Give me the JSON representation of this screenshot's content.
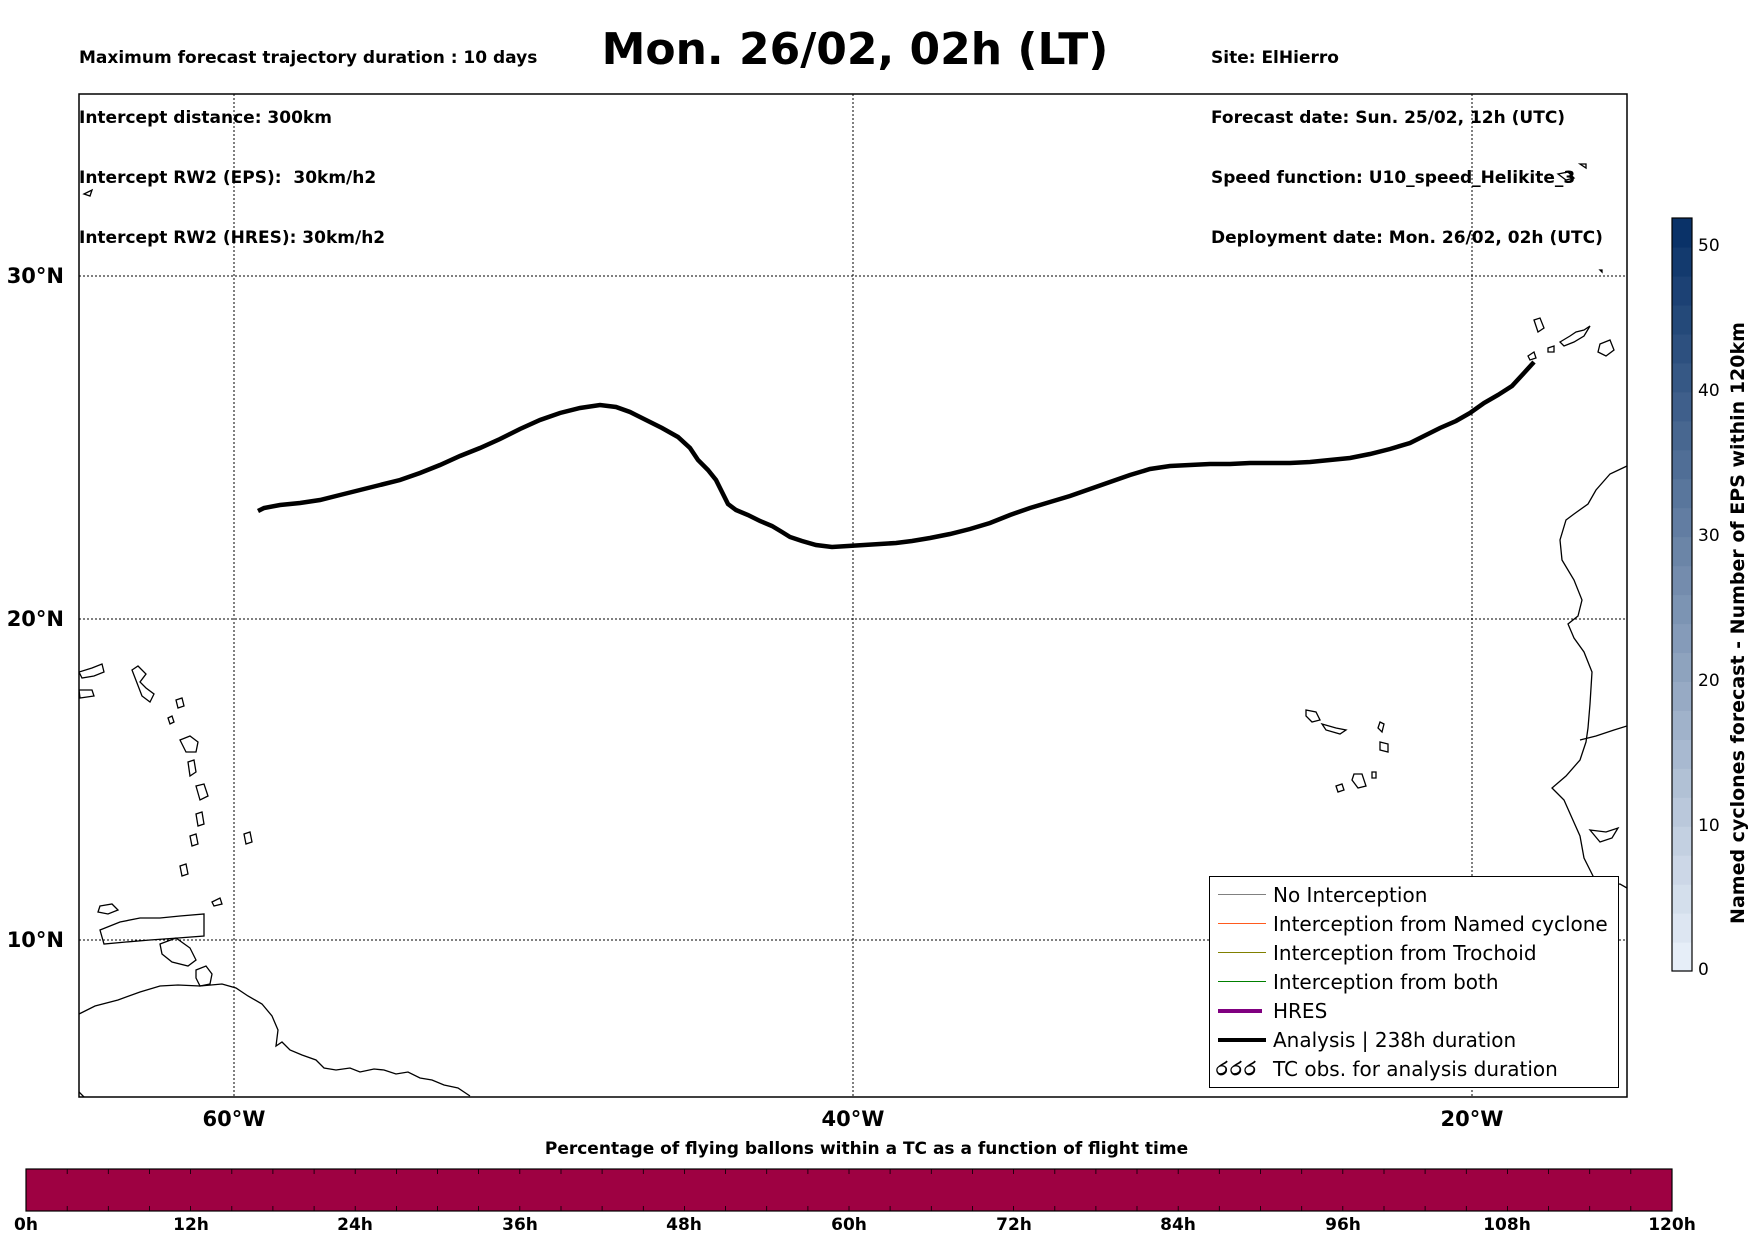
{
  "header": {
    "left": [
      "Maximum forecast trajectory duration : 10 days",
      "Intercept distance: 300km",
      "Intercept RW2 (EPS):  30km/h2",
      "Intercept RW2 (HRES): 30km/h2"
    ],
    "title": "Mon. 26/02, 02h (LT)",
    "right": [
      "Site: ElHierro",
      "Forecast date: Sun. 25/02, 12h (UTC)",
      "Speed function: U10_speed_Helikite_3",
      "Deployment date: Mon. 26/02, 02h (UTC)"
    ]
  },
  "map": {
    "lat_labels": [
      "30°N",
      "20°N",
      "10°N"
    ],
    "lon_labels": [
      "60°W",
      "40°W",
      "20°W"
    ],
    "analysis_track_color": "#000000"
  },
  "legend": {
    "items": [
      {
        "label": "No Interception",
        "color": "#808080",
        "kind": "thin-line"
      },
      {
        "label": "Interception from Named cyclone",
        "color": "#ff5a1e",
        "kind": "thin-line"
      },
      {
        "label": "Interception from Trochoid",
        "color": "#808000",
        "kind": "thin-line"
      },
      {
        "label": "Interception from both",
        "color": "#008000",
        "kind": "thin-line"
      },
      {
        "label": "HRES",
        "color": "#800080",
        "kind": "thick-line"
      },
      {
        "label": "Analysis | 238h duration",
        "color": "#000000",
        "kind": "thick-line"
      },
      {
        "label": "TC obs. for analysis duration",
        "color": "#000000",
        "kind": "tc-symbol",
        "icon": "tropical-cyclone-symbols"
      }
    ]
  },
  "colorbar": {
    "label": "Named cyclones forecast - Number of EPS within 120km",
    "ticks": [
      "0",
      "10",
      "20",
      "30",
      "40",
      "50"
    ],
    "max": 52,
    "color_low": "#e6eef8",
    "color_high": "#0a3268"
  },
  "percentage_bar": {
    "title": "Percentage of flying ballons within a TC as a function of flight time",
    "labels": [
      "0h",
      "12h",
      "24h",
      "36h",
      "48h",
      "60h",
      "72h",
      "84h",
      "96h",
      "108h",
      "120h"
    ],
    "fill_color": "#9e0142",
    "percent_in_tc": 0
  }
}
